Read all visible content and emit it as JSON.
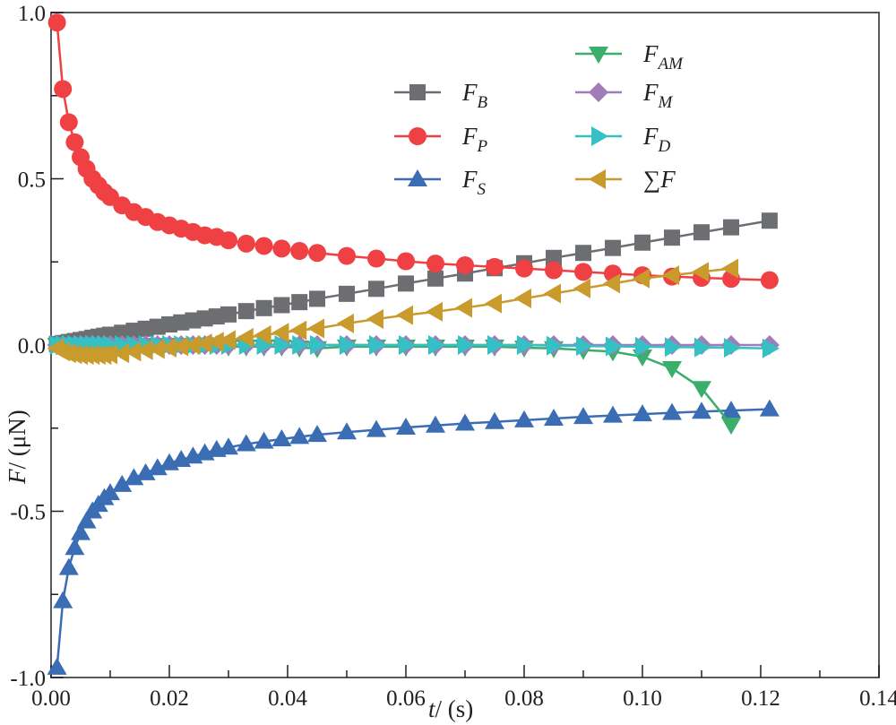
{
  "chart_data": {
    "type": "line",
    "xlabel": "t/ (s)",
    "xlabel_italic": "t",
    "xlabel_rest": "/ (s)",
    "ylabel_italic": "F",
    "ylabel_rest": "/ (μN)",
    "xlim": [
      0,
      0.14
    ],
    "ylim": [
      -1.0,
      1.0
    ],
    "xticks": [
      "0.00",
      "0.02",
      "0.04",
      "0.06",
      "0.08",
      "0.10",
      "0.12",
      "0.14"
    ],
    "yticks": [
      "-1.0",
      "-0.5",
      "0.0",
      "0.5",
      "1.0"
    ],
    "grid": false,
    "legend_placement": "top-center",
    "x": [
      0.001,
      0.002,
      0.003,
      0.004,
      0.005,
      0.006,
      0.007,
      0.008,
      0.009,
      0.01,
      0.012,
      0.014,
      0.016,
      0.018,
      0.02,
      0.022,
      0.024,
      0.026,
      0.028,
      0.03,
      0.033,
      0.036,
      0.039,
      0.042,
      0.045,
      0.05,
      0.055,
      0.06,
      0.065,
      0.07,
      0.075,
      0.08,
      0.085,
      0.09,
      0.095,
      0.1,
      0.105,
      0.11,
      0.115,
      0.1215
    ],
    "series": [
      {
        "name": "F_B",
        "base": "F",
        "sub": "B",
        "color": "#6d6e71",
        "marker": "square",
        "values": [
          0.003,
          0.006,
          0.009,
          0.012,
          0.015,
          0.018,
          0.022,
          0.025,
          0.028,
          0.031,
          0.037,
          0.043,
          0.049,
          0.055,
          0.062,
          0.068,
          0.074,
          0.08,
          0.086,
          0.092,
          0.102,
          0.111,
          0.12,
          0.129,
          0.139,
          0.154,
          0.169,
          0.185,
          0.2,
          0.215,
          0.231,
          0.246,
          0.262,
          0.277,
          0.292,
          0.308,
          0.323,
          0.339,
          0.354,
          0.374
        ]
      },
      {
        "name": "F_P",
        "base": "F",
        "sub": "P",
        "color": "#ef4044",
        "marker": "circle",
        "values": [
          0.97,
          0.77,
          0.67,
          0.61,
          0.565,
          0.53,
          0.5,
          0.48,
          0.46,
          0.445,
          0.42,
          0.4,
          0.385,
          0.37,
          0.36,
          0.35,
          0.34,
          0.33,
          0.325,
          0.315,
          0.305,
          0.298,
          0.29,
          0.283,
          0.277,
          0.268,
          0.26,
          0.252,
          0.245,
          0.24,
          0.235,
          0.23,
          0.225,
          0.22,
          0.215,
          0.21,
          0.206,
          0.202,
          0.199,
          0.195
        ]
      },
      {
        "name": "F_S",
        "base": "F",
        "sub": "S",
        "color": "#3b6db5",
        "marker": "triangle-up",
        "values": [
          -0.97,
          -0.77,
          -0.67,
          -0.61,
          -0.565,
          -0.53,
          -0.5,
          -0.48,
          -0.46,
          -0.445,
          -0.42,
          -0.4,
          -0.385,
          -0.37,
          -0.355,
          -0.345,
          -0.335,
          -0.325,
          -0.315,
          -0.308,
          -0.298,
          -0.29,
          -0.283,
          -0.276,
          -0.27,
          -0.262,
          -0.255,
          -0.248,
          -0.242,
          -0.236,
          -0.231,
          -0.226,
          -0.221,
          -0.216,
          -0.212,
          -0.208,
          -0.204,
          -0.2,
          -0.197,
          -0.193
        ]
      },
      {
        "name": "F_AM",
        "base": "F",
        "sub": "AM",
        "color": "#3aae6b",
        "marker": "triangle-down",
        "values": [
          0,
          0,
          0,
          0,
          0,
          0,
          0,
          0,
          0,
          0,
          0,
          0,
          0,
          0,
          0,
          0,
          0,
          0,
          0,
          -0.005,
          -0.005,
          -0.005,
          -0.005,
          -0.008,
          -0.01,
          -0.005,
          -0.005,
          -0.005,
          -0.005,
          -0.005,
          -0.005,
          -0.008,
          -0.01,
          -0.015,
          -0.02,
          -0.035,
          -0.07,
          -0.13,
          -0.24,
          null
        ]
      },
      {
        "name": "F_M",
        "base": "F",
        "sub": "M",
        "color": "#a07cb8",
        "marker": "diamond",
        "values": [
          0,
          0,
          0,
          0,
          0,
          0,
          0,
          0,
          0,
          0,
          0,
          0,
          0,
          0,
          0,
          0,
          0,
          0,
          0,
          0,
          0,
          0,
          0,
          0,
          0,
          0,
          0,
          0,
          0,
          0,
          0,
          0,
          0,
          0,
          0,
          0,
          0,
          0,
          0,
          0
        ]
      },
      {
        "name": "F_D",
        "base": "F",
        "sub": "D",
        "color": "#35c0c4",
        "marker": "triangle-right",
        "values": [
          0,
          0,
          0,
          0,
          0,
          0,
          0,
          0,
          0,
          0,
          0,
          0,
          0,
          0,
          0,
          0,
          0,
          0,
          0,
          0,
          0,
          0,
          0,
          0,
          0,
          0,
          0,
          0,
          0,
          0,
          0,
          0,
          -0.002,
          -0.003,
          -0.004,
          -0.005,
          -0.006,
          -0.007,
          -0.008,
          -0.01
        ]
      },
      {
        "name": "ΣF",
        "base": "∑F",
        "sub": "",
        "color": "#c99a2c",
        "marker": "triangle-left",
        "values": [
          -0.01,
          -0.02,
          -0.025,
          -0.028,
          -0.03,
          -0.03,
          -0.03,
          -0.03,
          -0.03,
          -0.028,
          -0.025,
          -0.02,
          -0.016,
          -0.012,
          -0.008,
          -0.004,
          0,
          0.005,
          0.01,
          0.015,
          0.022,
          0.03,
          0.037,
          0.044,
          0.05,
          0.065,
          0.078,
          0.09,
          0.1,
          0.112,
          0.125,
          0.14,
          0.155,
          0.17,
          0.185,
          0.2,
          0.21,
          0.22,
          0.23,
          null
        ]
      }
    ]
  }
}
